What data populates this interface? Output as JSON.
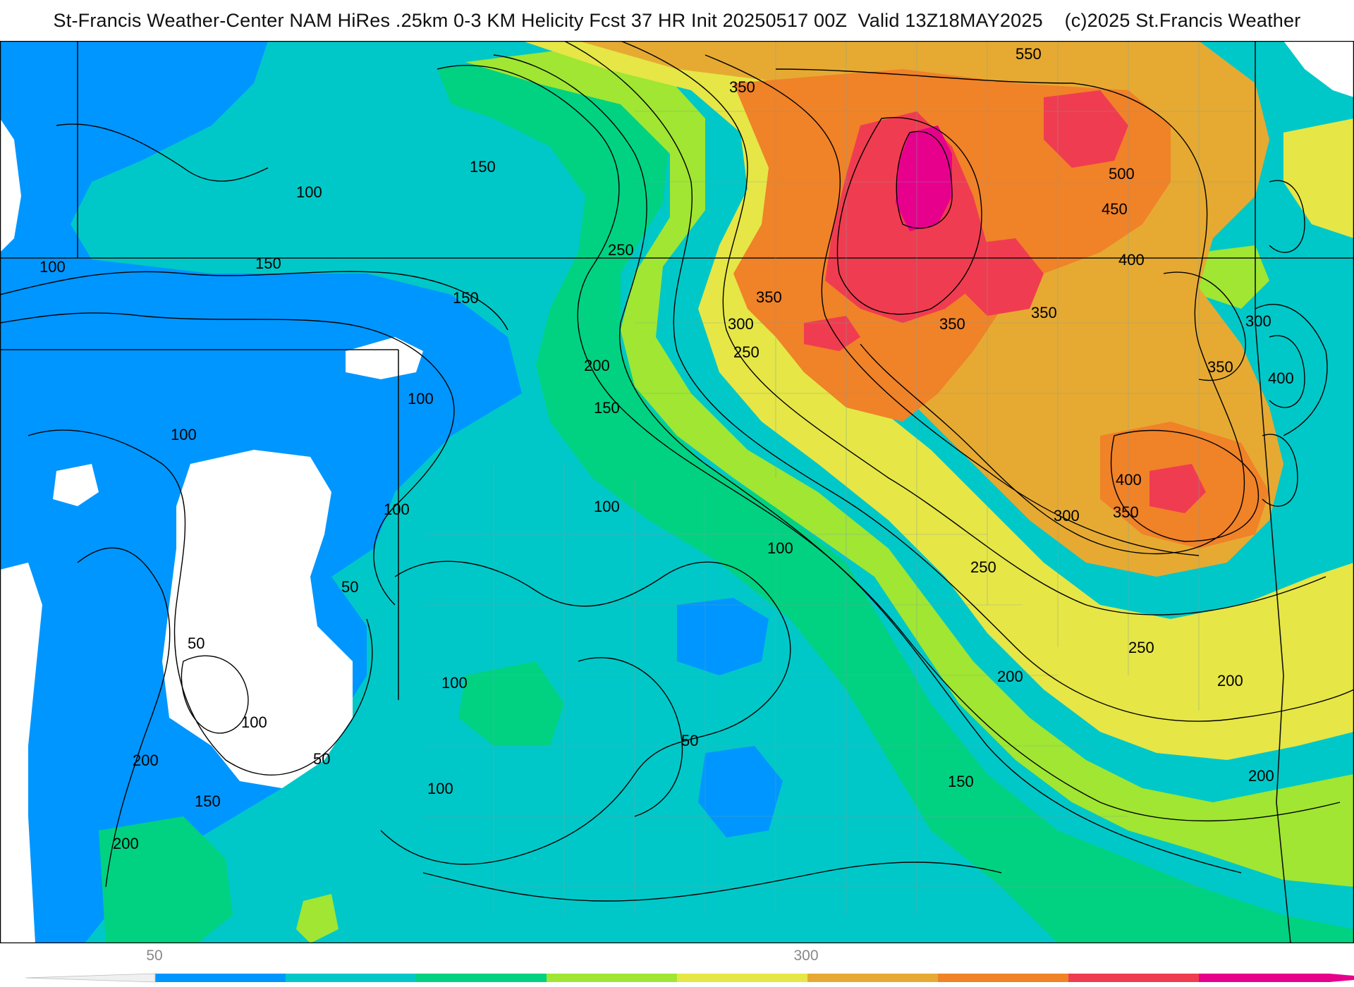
{
  "title": "St-Francis Weather-Center NAM HiRes .25km 0-3 KM Helicity Fcst 37 HR Init 20250517 00Z  Valid 13Z18MAY2025    (c)2025 St.Francis Weather",
  "map": {
    "field": "0-3 KM Helicity",
    "contour_labels": [
      "550",
      "350",
      "150",
      "100",
      "500",
      "450",
      "250",
      "400",
      "150",
      "100",
      "350",
      "300",
      "350",
      "350",
      "300",
      "250",
      "200",
      "350",
      "400",
      "100",
      "150",
      "150",
      "100",
      "100",
      "100",
      "400",
      "350",
      "300",
      "100",
      "250",
      "250",
      "50",
      "200",
      "200",
      "50",
      "100",
      "100",
      "50",
      "200",
      "150",
      "200",
      "50",
      "100",
      "150",
      "200"
    ]
  },
  "colorbar": {
    "tick_labels": [
      "50",
      "300"
    ],
    "colors": [
      "#0096ff",
      "#00c8c8",
      "#00d282",
      "#a0e632",
      "#e6e646",
      "#e6aa32",
      "#f08228",
      "#f03c50",
      "#e6008c"
    ]
  }
}
